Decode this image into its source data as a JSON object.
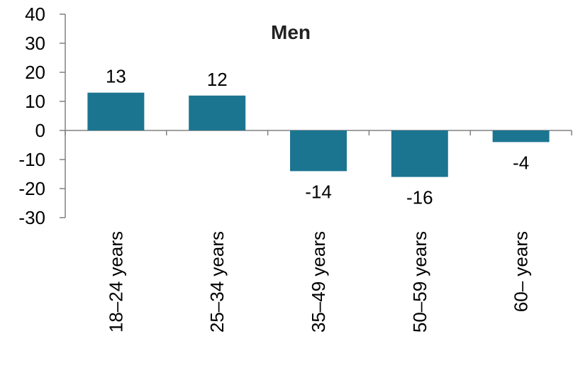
{
  "chart_data": {
    "type": "bar",
    "title": "Men",
    "categories": [
      "18–24 years",
      "25–34 years",
      "35–49 years",
      "50–59 years",
      "60– years"
    ],
    "values": [
      13,
      12,
      -14,
      -16,
      -4
    ],
    "value_labels": [
      "13",
      "12",
      "-14",
      "-16",
      "-4"
    ],
    "ylim": [
      -30,
      40
    ],
    "yticks": [
      40,
      30,
      20,
      10,
      0,
      -10,
      -20,
      -30
    ],
    "ytick_labels": [
      "40",
      "30",
      "20",
      "10",
      "0",
      "-10",
      "-20",
      "-30"
    ],
    "xlabel": "",
    "ylabel": "",
    "grid": false,
    "bar_color": "#1b7591",
    "axis_color": "#808080"
  }
}
